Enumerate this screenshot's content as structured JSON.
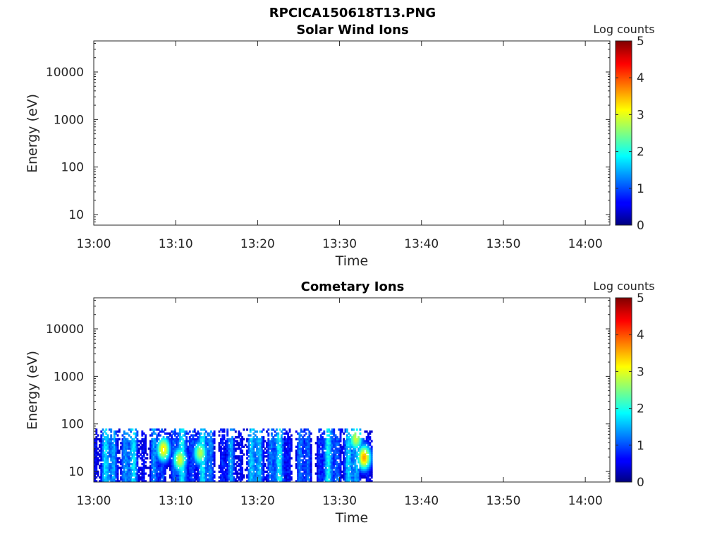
{
  "figure_title": "RPCICA150618T13.PNG",
  "chart_data": [
    {
      "type": "heatmap",
      "title": "Solar Wind Ions",
      "xlabel": "Time",
      "ylabel": "Energy (eV)",
      "x_ticks": [
        "13:00",
        "13:10",
        "13:20",
        "13:30",
        "13:40",
        "13:50",
        "14:00"
      ],
      "xlim": [
        "13:00",
        "14:03"
      ],
      "y_ticks": [
        "10",
        "100",
        "1000",
        "10000"
      ],
      "ylim": [
        6,
        45000
      ],
      "y_scale": "log",
      "colorbar": {
        "label": "Log counts",
        "ticks": [
          "0",
          "1",
          "2",
          "3",
          "4",
          "5"
        ],
        "range": [
          0,
          5
        ],
        "colormap": "jet"
      },
      "data_coverage": null
    },
    {
      "type": "heatmap",
      "title": "Cometary Ions",
      "xlabel": "Time",
      "ylabel": "Energy (eV)",
      "x_ticks": [
        "13:00",
        "13:10",
        "13:20",
        "13:30",
        "13:40",
        "13:50",
        "14:00"
      ],
      "xlim": [
        "13:00",
        "14:03"
      ],
      "y_ticks": [
        "10",
        "100",
        "1000",
        "10000"
      ],
      "ylim": [
        6,
        45000
      ],
      "y_scale": "log",
      "colorbar": {
        "label": "Log counts",
        "ticks": [
          "0",
          "1",
          "2",
          "3",
          "4",
          "5"
        ],
        "range": [
          0,
          5
        ],
        "colormap": "jet"
      },
      "data_coverage": {
        "time_start": "13:00",
        "time_end": "13:34",
        "energy_min_eV": 6,
        "energy_max_eV": 80
      },
      "hotspots": [
        {
          "time": "13:08.5",
          "energy_eV": 30,
          "log_counts": 3.3
        },
        {
          "time": "13:10.5",
          "energy_eV": 18,
          "log_counts": 3.0
        },
        {
          "time": "13:13",
          "energy_eV": 25,
          "log_counts": 2.8
        },
        {
          "time": "13:33",
          "energy_eV": 20,
          "log_counts": 3.6
        },
        {
          "time": "13:32",
          "energy_eV": 50,
          "log_counts": 2.9
        }
      ]
    }
  ]
}
